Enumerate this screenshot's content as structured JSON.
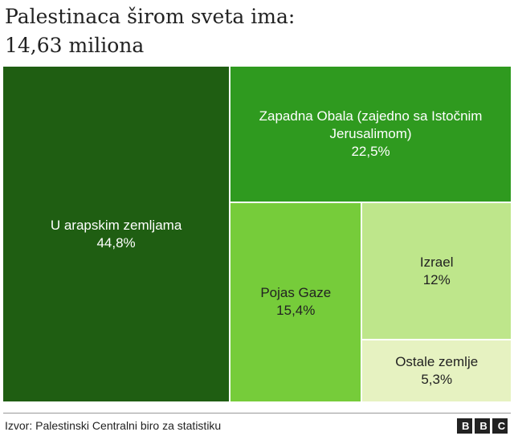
{
  "chart_data": {
    "type": "treemap",
    "title": "Palestinaca širom sveta ima:",
    "subtitle": "14,63 miliona",
    "categories": [
      "U arapskim zemljama",
      "Zapadna Obala (zajedno sa Istočnim Jerusalimom)",
      "Pojas Gaze",
      "Izrael",
      "Ostale zemlje"
    ],
    "values": [
      44.8,
      22.5,
      15.4,
      12,
      5.3
    ],
    "value_labels": [
      "44,8%",
      "22,5%",
      "15,4%",
      "12%",
      "5,3%"
    ],
    "colors": [
      "#1f5e12",
      "#2f9a1f",
      "#76cc3a",
      "#bee68b",
      "#e6f2c1"
    ],
    "source": "Izvor: Palestinski Centralni biro za statistiku",
    "logo": "BBC"
  }
}
